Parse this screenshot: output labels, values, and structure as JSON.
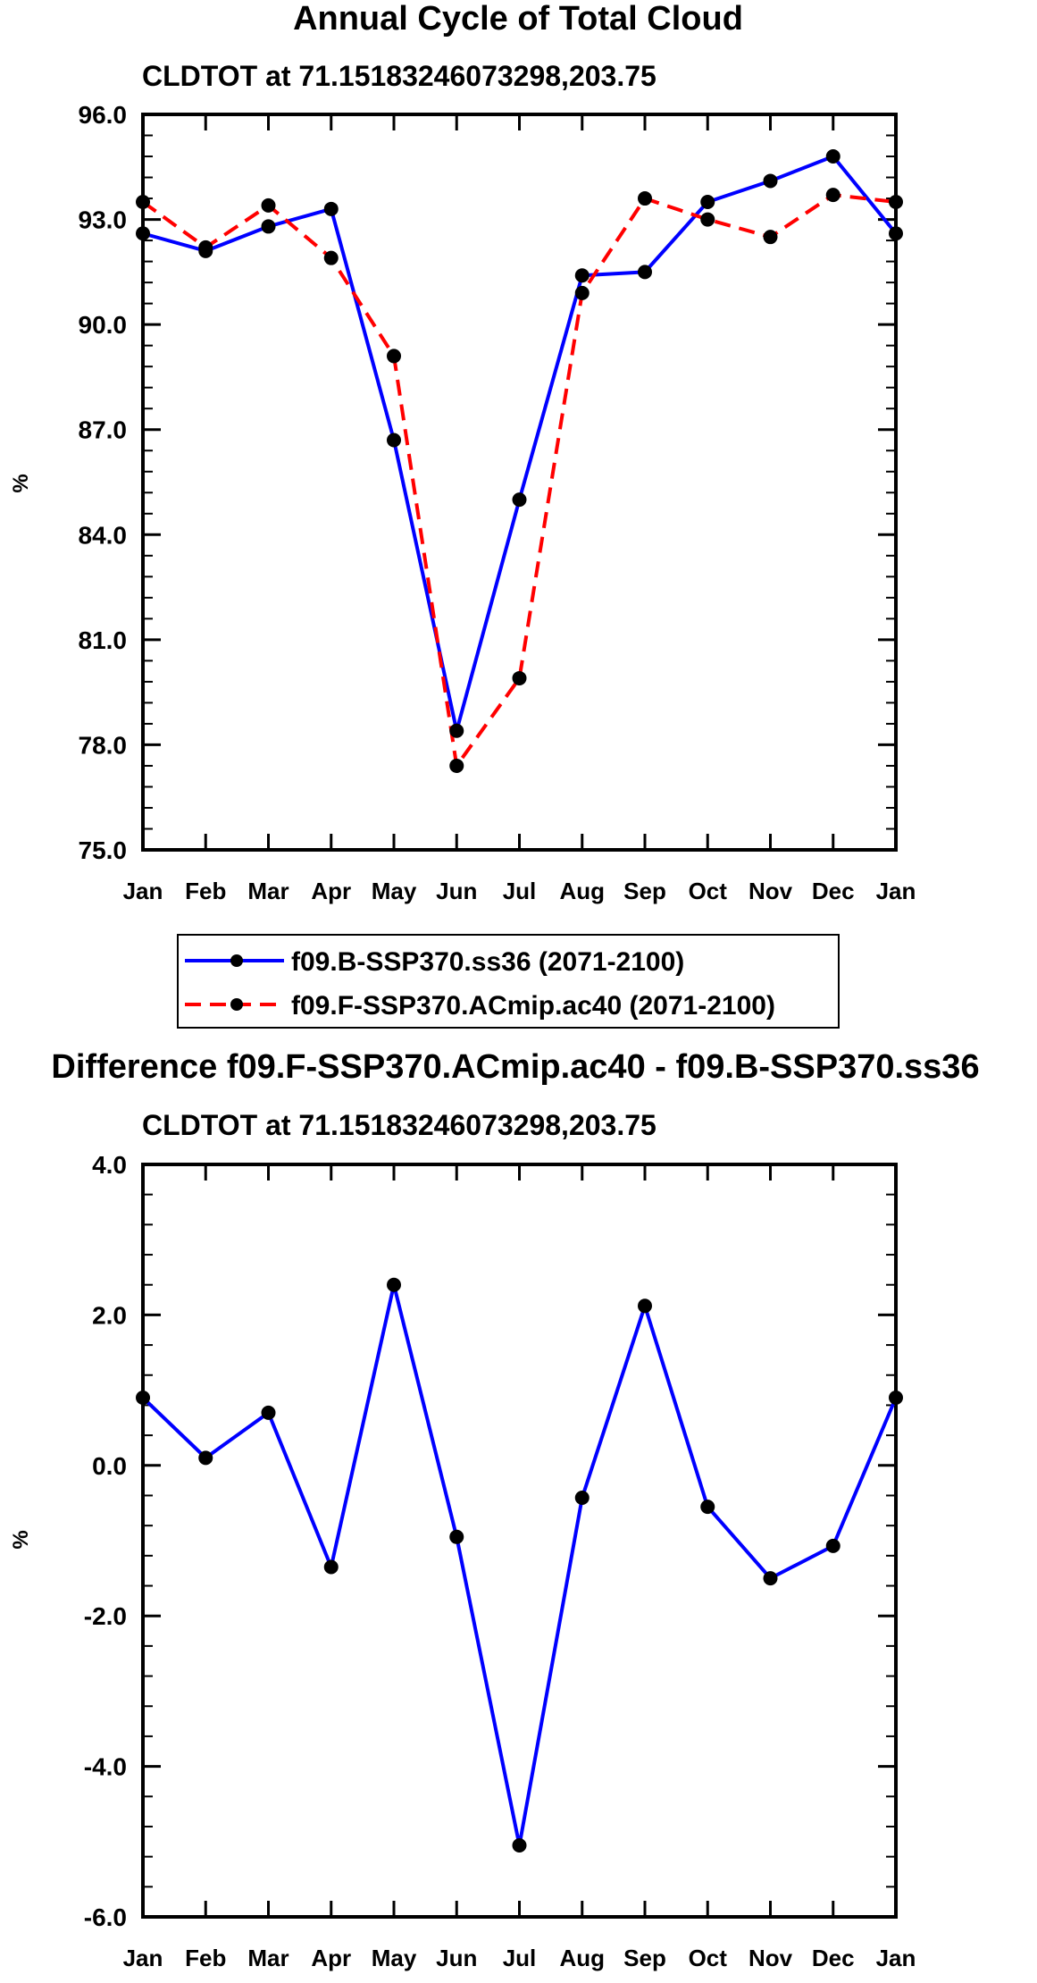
{
  "chart_data": [
    {
      "type": "line",
      "title": "Annual Cycle of Total Cloud",
      "subtitle": "CLDTOT at 71.15183246073298,203.75",
      "xlabel": "",
      "ylabel": "%",
      "categories": [
        "Jan",
        "Feb",
        "Mar",
        "Apr",
        "May",
        "Jun",
        "Jul",
        "Aug",
        "Sep",
        "Oct",
        "Nov",
        "Dec",
        "Jan"
      ],
      "ylim": [
        75.0,
        96.0
      ],
      "yticks": [
        "75.0",
        "78.0",
        "81.0",
        "84.0",
        "87.0",
        "90.0",
        "93.0",
        "96.0"
      ],
      "grid": false,
      "legend_position": "bottom",
      "series": [
        {
          "name": "f09.B-SSP370.ss36 (2071-2100)",
          "color": "#0000ff",
          "dash": "solid",
          "values": [
            92.6,
            92.1,
            92.8,
            93.3,
            86.7,
            78.4,
            85.0,
            91.4,
            91.5,
            93.5,
            94.1,
            94.8,
            92.6
          ]
        },
        {
          "name": "f09.F-SSP370.ACmip.ac40 (2071-2100)",
          "color": "#ff0000",
          "dash": "dashed",
          "values": [
            93.5,
            92.2,
            93.4,
            91.9,
            89.1,
            77.4,
            79.9,
            90.9,
            93.6,
            93.0,
            92.5,
            93.7,
            93.5
          ]
        }
      ]
    },
    {
      "type": "line",
      "title": "Difference f09.F-SSP370.ACmip.ac40 - f09.B-SSP370.ss36",
      "subtitle": "CLDTOT at 71.15183246073298,203.75",
      "xlabel": "",
      "ylabel": "%",
      "categories": [
        "Jan",
        "Feb",
        "Mar",
        "Apr",
        "May",
        "Jun",
        "Jul",
        "Aug",
        "Sep",
        "Oct",
        "Nov",
        "Dec",
        "Jan"
      ],
      "ylim": [
        -6.0,
        4.0
      ],
      "yticks": [
        "-6.0",
        "-4.0",
        "-2.0",
        "0.0",
        "2.0",
        "4.0"
      ],
      "grid": false,
      "series": [
        {
          "name": "Difference",
          "color": "#0000ff",
          "dash": "solid",
          "values": [
            0.9,
            0.1,
            0.7,
            -1.35,
            2.4,
            -0.95,
            -5.05,
            -0.43,
            2.12,
            -0.55,
            -1.5,
            -1.07,
            0.9
          ]
        }
      ]
    }
  ]
}
